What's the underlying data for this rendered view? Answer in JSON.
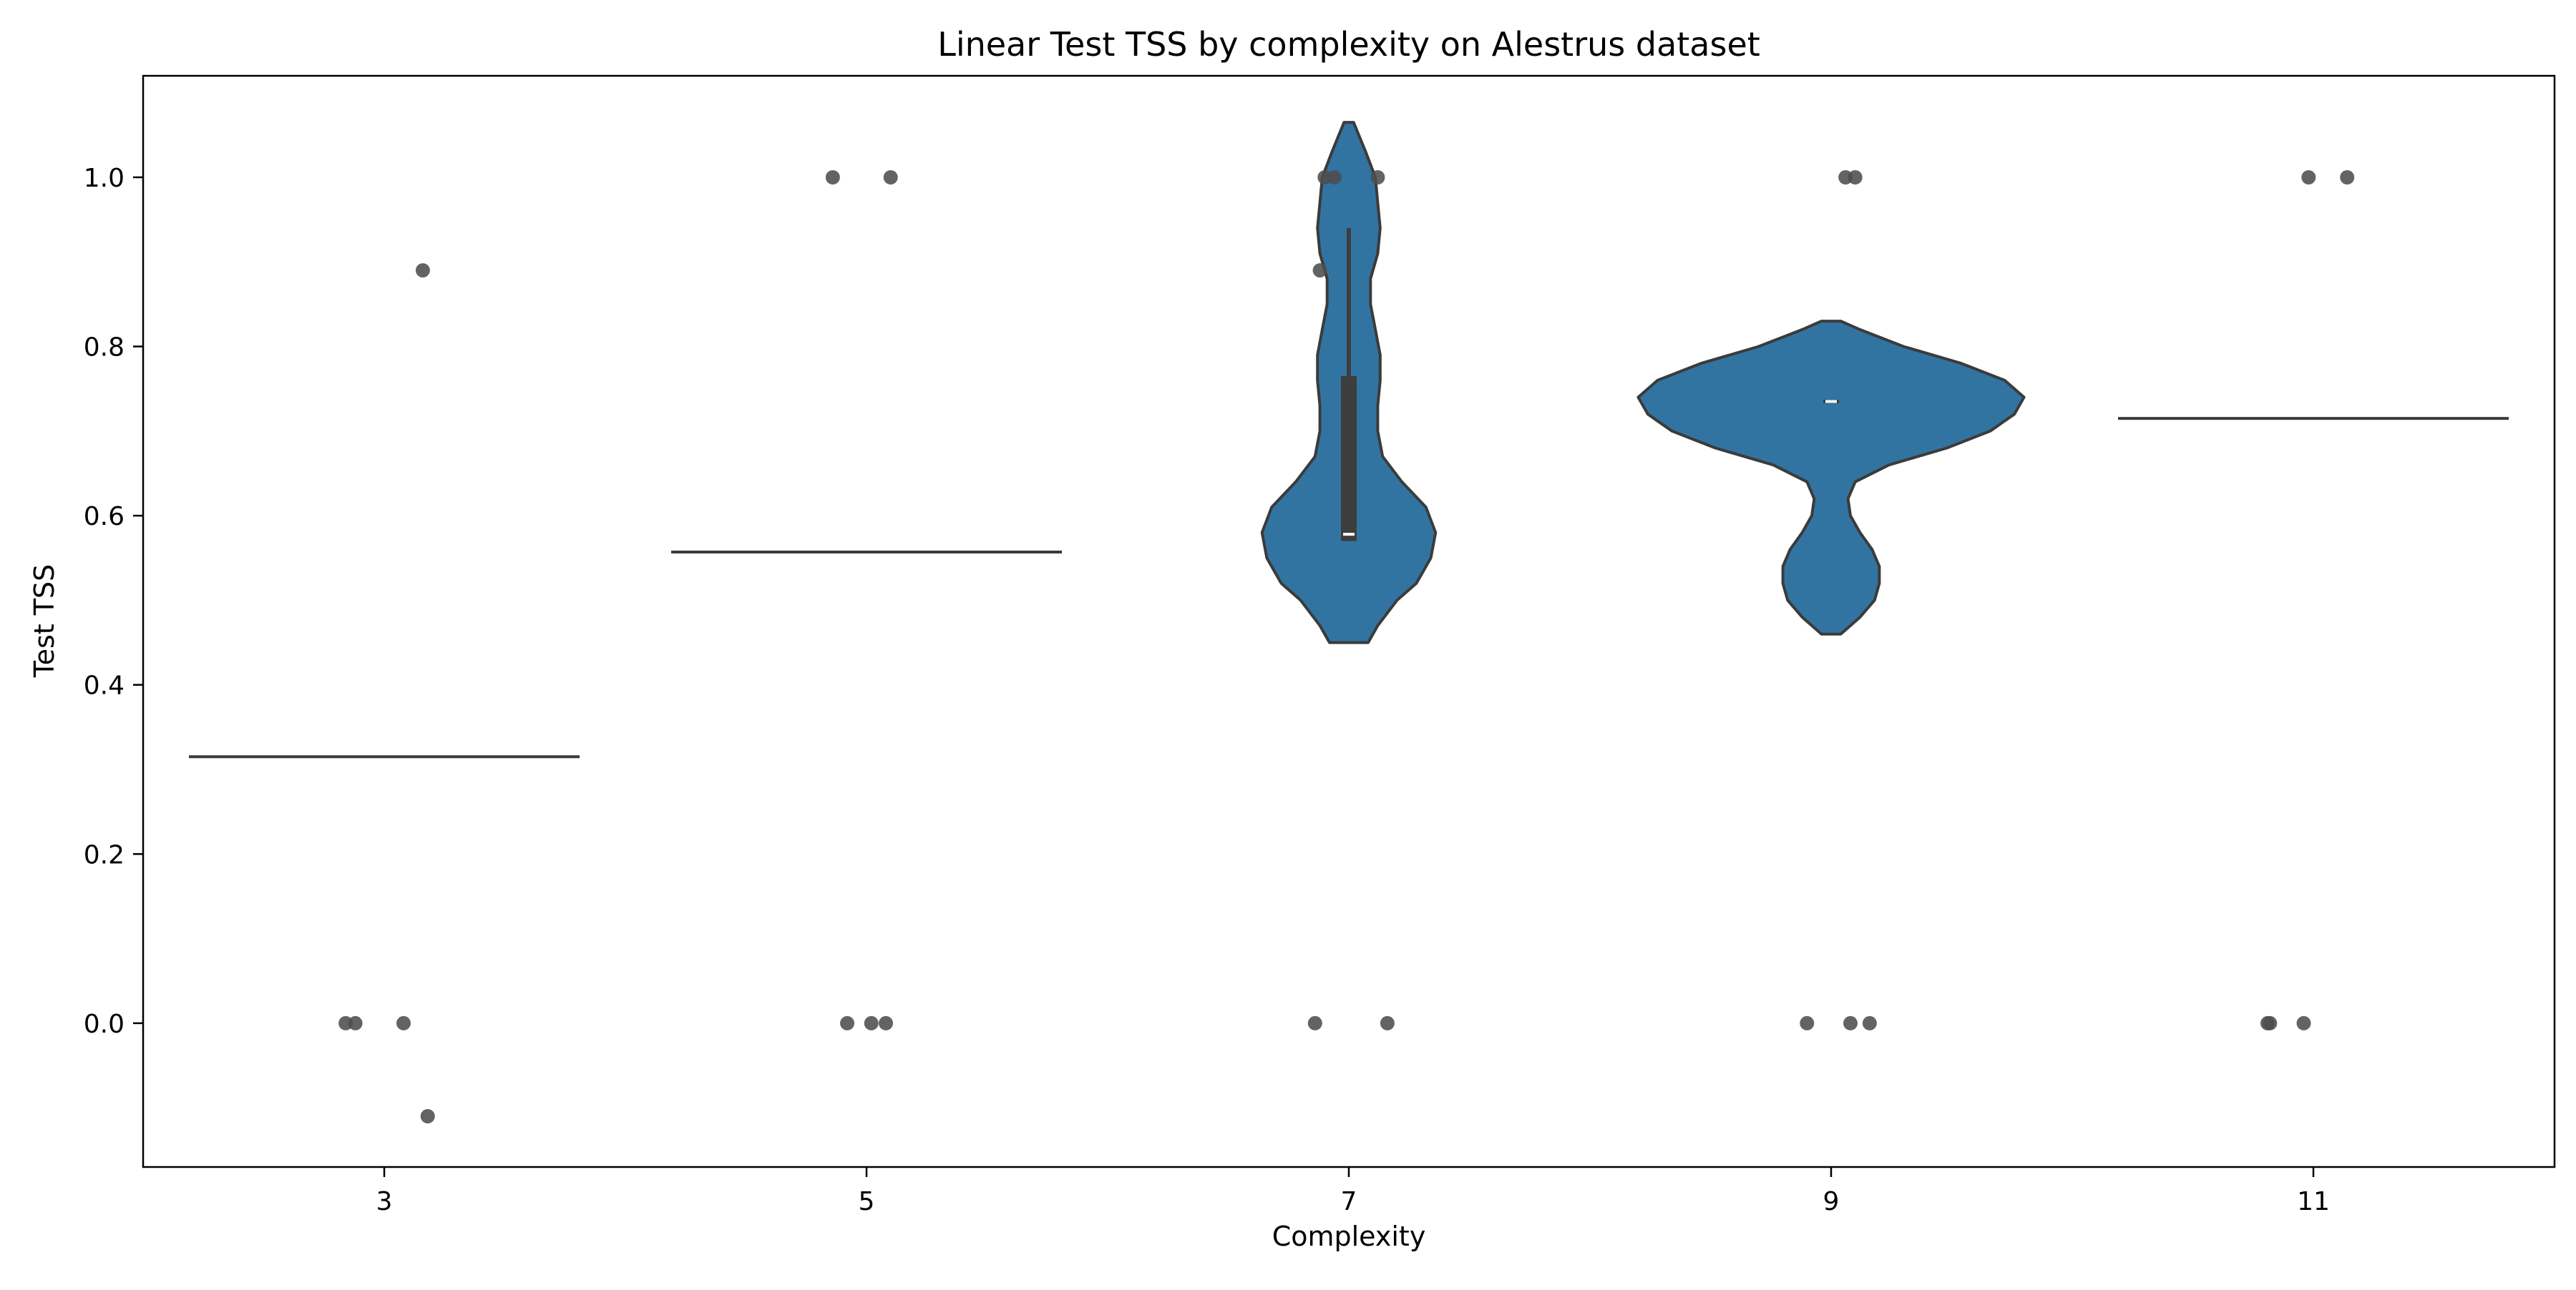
{
  "chart_data": {
    "type": "violin",
    "title": "Linear Test TSS by complexity on Alestrus dataset",
    "xlabel": "Complexity",
    "ylabel": "Test TSS",
    "categories": [
      "3",
      "5",
      "7",
      "9",
      "11"
    ],
    "ylim": [
      -0.17,
      1.12
    ],
    "yticks": [
      "0.0",
      "0.2",
      "0.4",
      "0.6",
      "0.8",
      "1.0"
    ],
    "ytick_values": [
      0.0,
      0.2,
      0.4,
      0.6,
      0.8,
      1.0
    ],
    "grid": false,
    "colors": {
      "violin_fill": "#3274a1",
      "violin_edge": "#3b3b3b",
      "point": "#4d4d4d",
      "box": "#3d3d3d",
      "median": "#ffffff"
    },
    "groups": [
      {
        "category": "3",
        "median": 0.315,
        "violin": null,
        "points": [
          {
            "x": -0.08,
            "y": 0.0
          },
          {
            "x": -0.06,
            "y": 0.0
          },
          {
            "x": 0.04,
            "y": 0.0
          },
          {
            "x": 0.08,
            "y": 0.89
          },
          {
            "x": 0.09,
            "y": -0.11
          }
        ]
      },
      {
        "category": "5",
        "median": 0.557,
        "violin": null,
        "points": [
          {
            "x": -0.07,
            "y": 1.0
          },
          {
            "x": 0.05,
            "y": 1.0
          },
          {
            "x": -0.04,
            "y": 0.0
          },
          {
            "x": 0.01,
            "y": 0.0
          },
          {
            "x": 0.04,
            "y": 0.0
          }
        ]
      },
      {
        "category": "7",
        "median": 0.578,
        "box": {
          "q1": 0.57,
          "q3": 0.765,
          "whisker_low": 0.57,
          "whisker_high": 0.94
        },
        "violin": {
          "ys": [
            0.45,
            0.47,
            0.5,
            0.52,
            0.55,
            0.58,
            0.61,
            0.64,
            0.67,
            0.7,
            0.73,
            0.76,
            0.79,
            0.82,
            0.85,
            0.88,
            0.91,
            0.94,
            0.97,
            1.0,
            1.03,
            1.065
          ],
          "half_widths": [
            0.04,
            0.06,
            0.1,
            0.14,
            0.17,
            0.18,
            0.16,
            0.11,
            0.07,
            0.06,
            0.06,
            0.065,
            0.065,
            0.055,
            0.045,
            0.045,
            0.06,
            0.065,
            0.06,
            0.055,
            0.035,
            0.01
          ]
        },
        "points": [
          {
            "x": -0.05,
            "y": 1.0
          },
          {
            "x": -0.03,
            "y": 1.0
          },
          {
            "x": 0.06,
            "y": 1.0
          },
          {
            "x": -0.06,
            "y": 0.89
          },
          {
            "x": -0.07,
            "y": 0.0
          },
          {
            "x": 0.08,
            "y": 0.0
          }
        ]
      },
      {
        "category": "9",
        "median": 0.735,
        "box": {
          "q1": 0.733,
          "q3": 0.737,
          "whisker_low": 0.733,
          "whisker_high": 0.737
        },
        "violin": {
          "ys": [
            0.46,
            0.48,
            0.5,
            0.52,
            0.54,
            0.56,
            0.58,
            0.6,
            0.62,
            0.64,
            0.66,
            0.68,
            0.7,
            0.72,
            0.74,
            0.76,
            0.78,
            0.8,
            0.82,
            0.83
          ],
          "half_widths": [
            0.02,
            0.06,
            0.09,
            0.1,
            0.1,
            0.085,
            0.06,
            0.04,
            0.035,
            0.05,
            0.12,
            0.24,
            0.33,
            0.38,
            0.4,
            0.36,
            0.27,
            0.15,
            0.06,
            0.02
          ]
        },
        "points": [
          {
            "x": 0.03,
            "y": 1.0
          },
          {
            "x": 0.05,
            "y": 1.0
          },
          {
            "x": -0.05,
            "y": 0.0
          },
          {
            "x": 0.04,
            "y": 0.0
          },
          {
            "x": 0.08,
            "y": 0.0
          }
        ]
      },
      {
        "category": "11",
        "median": 0.715,
        "violin": null,
        "points": [
          {
            "x": -0.09,
            "y": 0.0
          },
          {
            "x": -0.095,
            "y": 0.0
          },
          {
            "x": -0.02,
            "y": 0.0
          },
          {
            "x": -0.01,
            "y": 1.0
          },
          {
            "x": 0.07,
            "y": 1.0
          }
        ]
      }
    ]
  }
}
